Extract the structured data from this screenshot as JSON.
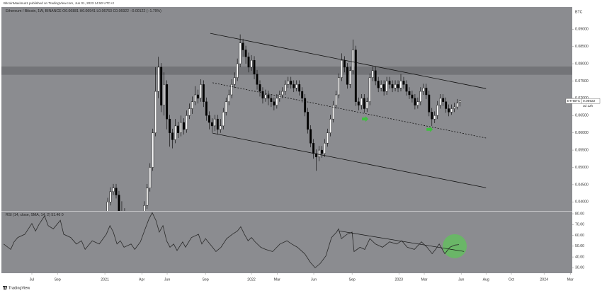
{
  "header": {
    "byline": "BitcoinMaximus1 published on TradingView.com, Jun 01, 2023 14:50 UTC+2"
  },
  "chart_data": [
    {
      "type": "candlestick",
      "title": "Ethereum / Bitcoin, 1W, BINANCE",
      "open_label": "O",
      "high_label": "H",
      "low_label": "L",
      "close_label": "C",
      "change": "−0.00122 (−1.79%)",
      "axis_unit": "BTC",
      "symbol_label": "ETHBTC",
      "countdown": "3d 12h",
      "background": "#8b8c90",
      "up_color": "#ffffff",
      "down_color": "#000000",
      "x": [
        0,
        1,
        2,
        3,
        4,
        5,
        6,
        7,
        8,
        9,
        10,
        11,
        12,
        13,
        14,
        15,
        16,
        17,
        18,
        19,
        20,
        21,
        22,
        23,
        24,
        25,
        26,
        27,
        28,
        29,
        30,
        31,
        32,
        33,
        34,
        35,
        36,
        37,
        38,
        39,
        40,
        41,
        42,
        43,
        44,
        45,
        46,
        47,
        48,
        49,
        50,
        51,
        52,
        53,
        54,
        55,
        56,
        57,
        58,
        59,
        60,
        61,
        62,
        63,
        64,
        65,
        66,
        67,
        68,
        69,
        70,
        71,
        72,
        73,
        74,
        75,
        76,
        77,
        78,
        79,
        80,
        81,
        82,
        83,
        84,
        85,
        86,
        87,
        88,
        89,
        90,
        91,
        92,
        93,
        94,
        95,
        96,
        97,
        98,
        99,
        100,
        101,
        102,
        103,
        104,
        105,
        106,
        107,
        108,
        109,
        110,
        111,
        112,
        113,
        114,
        115,
        116,
        117,
        118,
        119,
        120,
        121,
        122,
        123,
        124,
        125,
        126
      ],
      "open": [
        0.032,
        0.033,
        0.04,
        0.043,
        0.044,
        0.042,
        0.036,
        0.037,
        0.033,
        0.034,
        0.0325,
        0.033,
        0.0315,
        0.033,
        0.0345,
        0.039,
        0.044,
        0.05,
        0.06,
        0.072,
        0.079,
        0.068,
        0.074,
        0.064,
        0.06,
        0.058,
        0.062,
        0.06,
        0.063,
        0.061,
        0.065,
        0.067,
        0.069,
        0.071,
        0.07,
        0.074,
        0.069,
        0.065,
        0.063,
        0.062,
        0.064,
        0.061,
        0.062,
        0.066,
        0.069,
        0.071,
        0.074,
        0.076,
        0.08,
        0.086,
        0.084,
        0.082,
        0.079,
        0.081,
        0.077,
        0.074,
        0.072,
        0.07,
        0.071,
        0.07,
        0.069,
        0.068,
        0.07,
        0.071,
        0.072,
        0.074,
        0.075,
        0.074,
        0.073,
        0.074,
        0.072,
        0.07,
        0.066,
        0.061,
        0.057,
        0.054,
        0.053,
        0.055,
        0.054,
        0.057,
        0.06,
        0.064,
        0.068,
        0.071,
        0.076,
        0.081,
        0.079,
        0.074,
        0.078,
        0.084,
        0.069,
        0.068,
        0.07,
        0.067,
        0.069,
        0.076,
        0.078,
        0.075,
        0.073,
        0.074,
        0.072,
        0.075,
        0.074,
        0.073,
        0.074,
        0.073,
        0.075,
        0.074,
        0.072,
        0.071,
        0.07,
        0.068,
        0.069,
        0.072,
        0.073,
        0.071,
        0.066,
        0.064,
        0.065,
        0.068,
        0.07,
        0.069,
        0.067,
        0.066,
        0.067,
        0.0675,
        0.06881
      ],
      "high": [
        0.0342,
        0.0412,
        0.0442,
        0.0452,
        0.0452,
        0.0432,
        0.0402,
        0.0382,
        0.0352,
        0.0352,
        0.0342,
        0.0342,
        0.0342,
        0.0357,
        0.0402,
        0.0452,
        0.0512,
        0.0612,
        0.079,
        0.082,
        0.0802,
        0.0775,
        0.0752,
        0.0652,
        0.0612,
        0.064,
        0.0632,
        0.065,
        0.0642,
        0.0665,
        0.0685,
        0.0705,
        0.0735,
        0.0725,
        0.0755,
        0.0752,
        0.0702,
        0.0662,
        0.0642,
        0.0652,
        0.0652,
        0.064,
        0.0672,
        0.0702,
        0.0725,
        0.0755,
        0.0775,
        0.0815,
        0.0885,
        0.0872,
        0.0852,
        0.0832,
        0.0825,
        0.0822,
        0.0782,
        0.0752,
        0.0732,
        0.0725,
        0.0722,
        0.0712,
        0.0702,
        0.0712,
        0.0722,
        0.0732,
        0.0752,
        0.0762,
        0.0762,
        0.0752,
        0.0752,
        0.0752,
        0.0732,
        0.0712,
        0.0672,
        0.0622,
        0.0582,
        0.0552,
        0.0562,
        0.0562,
        0.0582,
        0.0612,
        0.0652,
        0.0692,
        0.0722,
        0.0772,
        0.083,
        0.0822,
        0.0802,
        0.0792,
        0.087,
        0.0852,
        0.0702,
        0.0712,
        0.0712,
        0.0702,
        0.0772,
        0.0792,
        0.0792,
        0.0762,
        0.0752,
        0.0752,
        0.0762,
        0.0762,
        0.0752,
        0.0752,
        0.0752,
        0.077,
        0.0762,
        0.0752,
        0.0732,
        0.0722,
        0.0712,
        0.0702,
        0.0732,
        0.0742,
        0.0742,
        0.0722,
        0.0672,
        0.0662,
        0.0692,
        0.0712,
        0.0712,
        0.0702,
        0.0682,
        0.0682,
        0.0687,
        0.0698,
        0.06941
      ],
      "low": [
        0.031,
        0.032,
        0.039,
        0.042,
        0.041,
        0.035,
        0.035,
        0.032,
        0.032,
        0.0315,
        0.0315,
        0.0305,
        0.0305,
        0.032,
        0.0335,
        0.038,
        0.043,
        0.049,
        0.059,
        0.07,
        0.066,
        0.065,
        0.061,
        0.056,
        0.0555,
        0.057,
        0.0585,
        0.059,
        0.0595,
        0.06,
        0.064,
        0.0655,
        0.068,
        0.0685,
        0.069,
        0.0675,
        0.0635,
        0.061,
        0.06,
        0.0605,
        0.0595,
        0.06,
        0.061,
        0.065,
        0.068,
        0.07,
        0.073,
        0.075,
        0.079,
        0.082,
        0.08,
        0.0775,
        0.078,
        0.0755,
        0.0725,
        0.0705,
        0.0685,
        0.069,
        0.068,
        0.0675,
        0.0665,
        0.067,
        0.069,
        0.07,
        0.071,
        0.073,
        0.0728,
        0.0718,
        0.072,
        0.0708,
        0.0688,
        0.0648,
        0.0598,
        0.0558,
        0.0525,
        0.049,
        0.0518,
        0.0528,
        0.053,
        0.056,
        0.059,
        0.063,
        0.067,
        0.07,
        0.075,
        0.0775,
        0.0728,
        0.073,
        0.077,
        0.0678,
        0.0665,
        0.0668,
        0.0658,
        0.066,
        0.068,
        0.075,
        0.0738,
        0.0718,
        0.072,
        0.0708,
        0.071,
        0.0728,
        0.0718,
        0.072,
        0.0718,
        0.072,
        0.0728,
        0.0708,
        0.0698,
        0.0688,
        0.0668,
        0.067,
        0.068,
        0.071,
        0.0698,
        0.0648,
        0.062,
        0.0628,
        0.064,
        0.067,
        0.0678,
        0.0658,
        0.0648,
        0.0652,
        0.066,
        0.0668,
        0.06763
      ],
      "close": [
        0.033,
        0.04,
        0.043,
        0.044,
        0.042,
        0.036,
        0.037,
        0.033,
        0.034,
        0.0325,
        0.033,
        0.0315,
        0.033,
        0.0345,
        0.039,
        0.044,
        0.05,
        0.06,
        0.072,
        0.079,
        0.068,
        0.074,
        0.064,
        0.06,
        0.058,
        0.062,
        0.06,
        0.063,
        0.061,
        0.065,
        0.067,
        0.069,
        0.071,
        0.07,
        0.074,
        0.069,
        0.065,
        0.063,
        0.062,
        0.064,
        0.061,
        0.062,
        0.066,
        0.069,
        0.071,
        0.074,
        0.076,
        0.08,
        0.086,
        0.084,
        0.082,
        0.079,
        0.081,
        0.077,
        0.074,
        0.072,
        0.07,
        0.071,
        0.07,
        0.069,
        0.068,
        0.07,
        0.071,
        0.072,
        0.074,
        0.075,
        0.074,
        0.073,
        0.074,
        0.072,
        0.07,
        0.066,
        0.061,
        0.057,
        0.054,
        0.053,
        0.055,
        0.054,
        0.057,
        0.06,
        0.064,
        0.068,
        0.071,
        0.076,
        0.081,
        0.079,
        0.074,
        0.078,
        0.084,
        0.069,
        0.068,
        0.07,
        0.067,
        0.069,
        0.076,
        0.078,
        0.075,
        0.073,
        0.074,
        0.072,
        0.075,
        0.074,
        0.073,
        0.074,
        0.073,
        0.075,
        0.074,
        0.072,
        0.071,
        0.07,
        0.068,
        0.069,
        0.072,
        0.073,
        0.071,
        0.066,
        0.064,
        0.065,
        0.068,
        0.07,
        0.069,
        0.067,
        0.066,
        0.067,
        0.0675,
        0.0686,
        0.06922
      ],
      "xlim": [
        -36.7,
        165.8
      ],
      "xticks": [
        {
          "value": -25.9,
          "label": "Jul"
        },
        {
          "value": -16.8,
          "label": "Sep"
        },
        {
          "value": 0,
          "label": "2021"
        },
        {
          "value": 13.1,
          "label": "Apr"
        },
        {
          "value": 22.1,
          "label": "Jun"
        },
        {
          "value": 35.7,
          "label": "Sep"
        },
        {
          "value": 52,
          "label": "2022"
        },
        {
          "value": 61.1,
          "label": "Mar"
        },
        {
          "value": 74.1,
          "label": "Jun"
        },
        {
          "value": 87.7,
          "label": "Sep"
        },
        {
          "value": 104.3,
          "label": "2023"
        },
        {
          "value": 113.3,
          "label": "Mar"
        },
        {
          "value": 126.4,
          "label": "Jun"
        },
        {
          "value": 135.2,
          "label": "Aug"
        },
        {
          "value": 144.2,
          "label": "Oct"
        },
        {
          "value": 155.8,
          "label": "2024"
        },
        {
          "value": 165.1,
          "label": "Mar"
        }
      ],
      "ylim": [
        0.0374,
        0.0964
      ],
      "yticks": [
        {
          "value": 0.04,
          "label": "0.04000"
        },
        {
          "value": 0.045,
          "label": "0.04500"
        },
        {
          "value": 0.05,
          "label": "0.05000"
        },
        {
          "value": 0.055,
          "label": "0.05500"
        },
        {
          "value": 0.06,
          "label": "0.06000"
        },
        {
          "value": 0.065,
          "label": "0.06500"
        },
        {
          "value": 0.07,
          "label": "0.07000"
        },
        {
          "value": 0.075,
          "label": "0.07500"
        },
        {
          "value": 0.08,
          "label": "0.08000"
        },
        {
          "value": 0.085,
          "label": "0.08500"
        },
        {
          "value": 0.09,
          "label": "0.09000"
        }
      ],
      "resistance_zone": [
        0.0768,
        0.0792
      ],
      "zone_color": "#6f7074",
      "trendlines": [
        {
          "x": [
            37.4,
            135.2
          ],
          "y": [
            0.0888,
            0.0728
          ],
          "style": "solid"
        },
        {
          "x": [
            38.2,
            135.2
          ],
          "y": [
            0.0745,
            0.0585
          ],
          "style": "dashed"
        },
        {
          "x": [
            38.2,
            135.2
          ],
          "y": [
            0.0599,
            0.0441
          ],
          "style": "solid"
        }
      ],
      "markers": [
        {
          "x": 92.2,
          "y": 0.064
        },
        {
          "x": 115.1,
          "y": 0.061
        }
      ],
      "marker_color": "#3fbf3f"
    },
    {
      "type": "line",
      "title": "RSI (14, close, SMA, 14, 2)",
      "extra": "0",
      "color": "#2a2a2a",
      "x": [
        -35.9,
        -33.4,
        -32.2,
        -30.9,
        -28.4,
        -25.9,
        -24.6,
        -23.4,
        -21.4,
        -20.1,
        -18.3,
        -15.8,
        -14.6,
        -12.1,
        -10.1,
        -8.3,
        -7,
        -4.5,
        -2,
        0.5,
        1.8,
        3,
        4.3,
        5.5,
        6.8,
        9.3,
        10.6,
        12.6,
        14.3,
        15.6,
        16.8,
        18.1,
        19.3,
        20.6,
        21.9,
        23.1,
        24.4,
        25.6,
        27.6,
        28.6,
        30.7,
        33.2,
        34.4,
        35.7,
        38.2,
        39.4,
        41.2,
        43.2,
        45.2,
        47,
        48.2,
        49.5,
        50.8,
        52,
        53.3,
        55.3,
        57,
        59.5,
        62.1,
        64.6,
        66.3,
        68.3,
        70.9,
        72.9,
        74.6,
        76.4,
        78.4,
        80.4,
        82.2,
        82.9,
        83.9,
        85.9,
        87.7,
        88.4,
        90.5,
        92.2,
        94,
        96,
        98.5,
        101,
        103.5,
        105.3,
        107.3,
        109.8,
        112.3,
        114.3,
        116.1,
        117.3,
        118.6,
        120.6,
        122.4,
        124.1,
        125.6
      ],
      "values": [
        52,
        47,
        54,
        58,
        61,
        71,
        64,
        70,
        78,
        69,
        66,
        74,
        61,
        58,
        52,
        55,
        47,
        55,
        52,
        61,
        69,
        63,
        52,
        55,
        49,
        52,
        47,
        54,
        66,
        75,
        81,
        74,
        63,
        69,
        55,
        49,
        52,
        46,
        54,
        49,
        58,
        61,
        52,
        57,
        49,
        45,
        49,
        57,
        61,
        64,
        68,
        61,
        55,
        58,
        54,
        49,
        47,
        45,
        52,
        55,
        52,
        49,
        43,
        35,
        30,
        34,
        41,
        58,
        63,
        66,
        57,
        61,
        63,
        45,
        49,
        47,
        57,
        52,
        49,
        54,
        52,
        55,
        49,
        47,
        54,
        49,
        43,
        47,
        52,
        43,
        49,
        51,
        51.46
      ],
      "xlim": [
        -36.7,
        165.8
      ],
      "ylim": [
        25,
        82
      ],
      "yticks": [
        {
          "value": 30,
          "label": "30.00"
        },
        {
          "value": 40,
          "label": "40.00"
        },
        {
          "value": 50,
          "label": "50.00"
        },
        {
          "value": 60,
          "label": "60.00"
        },
        {
          "value": 70,
          "label": "70.00"
        },
        {
          "value": 80,
          "label": "80.00"
        }
      ],
      "trendline": {
        "x": [
          82.9,
          127.4
        ],
        "y": [
          64.2,
          45.1
        ]
      },
      "highlight": {
        "x": 124.1,
        "y": 50,
        "color": "#5fc45a"
      }
    }
  ],
  "footer": {
    "logo": "TradingView"
  }
}
